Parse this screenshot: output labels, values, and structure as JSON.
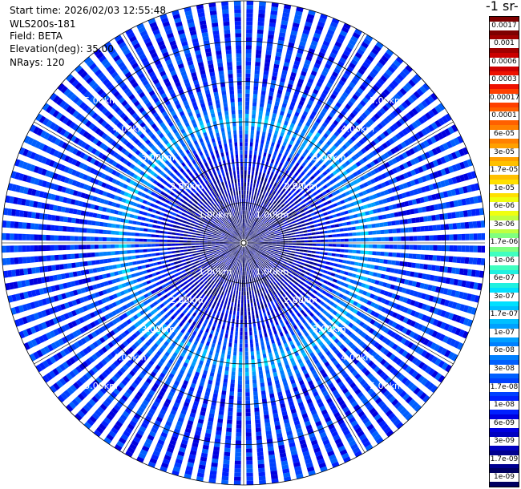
{
  "info": {
    "start_time": "Start time: 2026/02/03 12:55:48",
    "instrument": "WLS200s-181",
    "field": "Field: BETA",
    "elevation": "Elevation(deg): 35.00",
    "nrays": "NRays: 120"
  },
  "colorbar": {
    "title": "-1 sr-",
    "labels": [
      "0.0017",
      "0.001",
      "0.0006",
      "0.0003",
      "0.00017",
      "0.0001",
      "6e-05",
      "3e-05",
      "1.7e-05",
      "1e-05",
      "6e-06",
      "3e-06",
      "1.7e-06",
      "1e-06",
      "6e-07",
      "3e-07",
      "1.7e-07",
      "1e-07",
      "6e-08",
      "3e-08",
      "1.7e-08",
      "1e-08",
      "6e-09",
      "3e-09",
      "1.7e-09",
      "1e-09"
    ],
    "colors": [
      "#7f0000",
      "#a00000",
      "#cc0000",
      "#ee1100",
      "#ff4000",
      "#ff6000",
      "#ff8000",
      "#ffa000",
      "#ffc000",
      "#ffe000",
      "#f0ff10",
      "#c0ff40",
      "#80ff80",
      "#40ffc0",
      "#20f0e0",
      "#00e0ff",
      "#00c0ff",
      "#00a0ff",
      "#0080ff",
      "#0060ff",
      "#0040ff",
      "#0020ff",
      "#0000e0",
      "#0000c0",
      "#000090",
      "#000060"
    ]
  },
  "chart_data": {
    "type": "heatmap",
    "projection": "polar-ppi",
    "field": "BETA",
    "n_rays": 120,
    "elevation_deg": 35.0,
    "range_rings_km": [
      1.0,
      2.0,
      3.0,
      4.0,
      5.0
    ],
    "ring_labels": [
      "1.00km",
      "2.00km",
      "3.00km",
      "4.00km",
      "5.00km"
    ],
    "max_range_km": 6.0,
    "value_profile": {
      "range_km": [
        0,
        1.5,
        2.0,
        2.5,
        3.0,
        3.5,
        4.0,
        5.0,
        6.0
      ],
      "beta": [
        1e-09,
        3e-09,
        1e-08,
        1.7e-08,
        1.7e-07,
        3e-08,
        1.7e-08,
        1.7e-08,
        1.7e-08
      ]
    },
    "colorbar_scale": "log"
  }
}
